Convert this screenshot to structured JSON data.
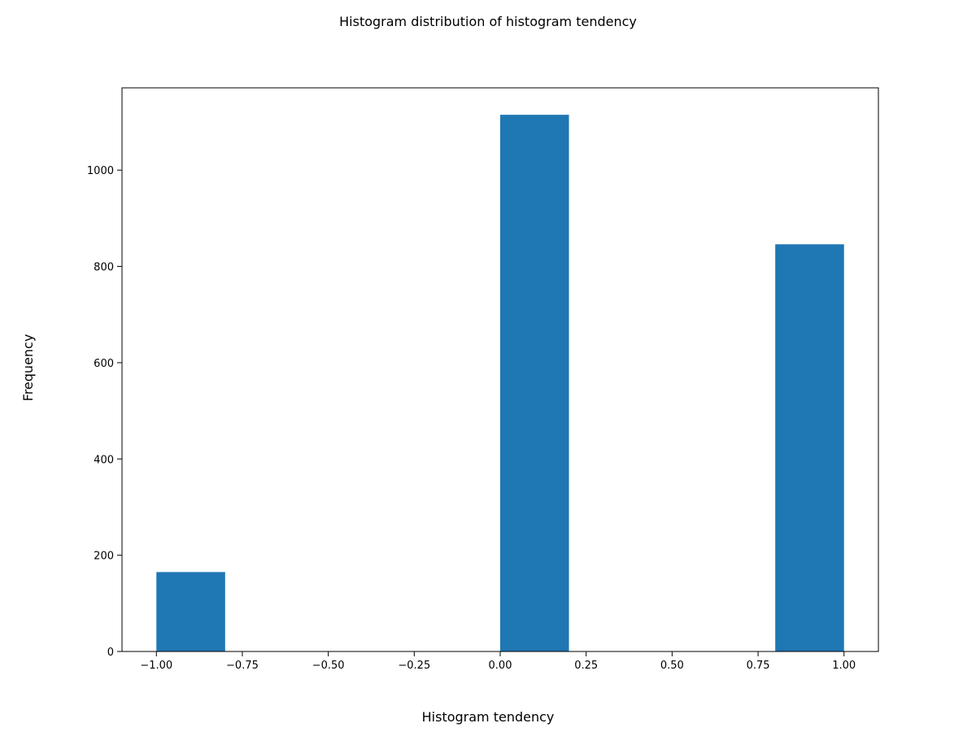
{
  "chart_data": {
    "type": "bar",
    "title": "Histogram distribution of histogram tendency",
    "xlabel": "Histogram tendency",
    "ylabel": "Frequency",
    "xlim": [
      -1.1,
      1.1
    ],
    "ylim": [
      0,
      1171
    ],
    "grid": false,
    "legend": "none",
    "bar_color": "#1f77b4",
    "bins": [
      {
        "x0": -1.0,
        "x1": -0.8,
        "count": 165
      },
      {
        "x0": -0.8,
        "x1": -0.6,
        "count": 0
      },
      {
        "x0": -0.6,
        "x1": -0.4,
        "count": 0
      },
      {
        "x0": -0.4,
        "x1": -0.2,
        "count": 0
      },
      {
        "x0": -0.2,
        "x1": 0.0,
        "count": 0
      },
      {
        "x0": 0.0,
        "x1": 0.2,
        "count": 1115
      },
      {
        "x0": 0.2,
        "x1": 0.4,
        "count": 0
      },
      {
        "x0": 0.4,
        "x1": 0.6,
        "count": 0
      },
      {
        "x0": 0.6,
        "x1": 0.8,
        "count": 0
      },
      {
        "x0": 0.8,
        "x1": 1.0,
        "count": 846
      }
    ],
    "x_ticks": [
      -1.0,
      -0.75,
      -0.5,
      -0.25,
      0.0,
      0.25,
      0.5,
      0.75,
      1.0
    ],
    "x_tick_labels": [
      "−1.00",
      "−0.75",
      "−0.50",
      "−0.25",
      "0.00",
      "0.25",
      "0.50",
      "0.75",
      "1.00"
    ],
    "y_ticks": [
      0,
      200,
      400,
      600,
      800,
      1000
    ],
    "y_tick_labels": [
      "0",
      "200",
      "400",
      "600",
      "800",
      "1000"
    ]
  }
}
